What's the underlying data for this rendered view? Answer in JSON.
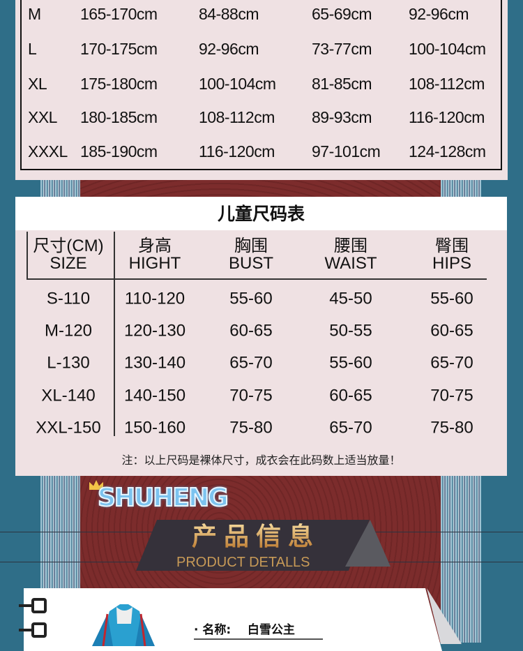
{
  "watermark": {
    "logo_text": "SHUHENG"
  },
  "adult_table": {
    "rows": [
      [
        "M",
        "165-170cm",
        "84-88cm",
        "65-69cm",
        "92-96cm"
      ],
      [
        "L",
        "170-175cm",
        "92-96cm",
        "73-77cm",
        "100-104cm"
      ],
      [
        "XL",
        "175-180cm",
        "100-104cm",
        "81-85cm",
        "108-112cm"
      ],
      [
        "XXL",
        "180-185cm",
        "108-112cm",
        "89-93cm",
        "116-120cm"
      ],
      [
        "XXXL",
        "185-190cm",
        "116-120cm",
        "97-101cm",
        "124-128cm"
      ]
    ]
  },
  "kids_table": {
    "title": "儿童尺码表",
    "headers": [
      {
        "cn": "尺寸(CM)",
        "en": "SIZE"
      },
      {
        "cn": "身高",
        "en": "HIGHT"
      },
      {
        "cn": "胸围",
        "en": "BUST"
      },
      {
        "cn": "腰围",
        "en": "WAIST"
      },
      {
        "cn": "臀围",
        "en": "HIPS"
      }
    ],
    "rows": [
      [
        "S-110",
        "110-120",
        "55-60",
        "45-50",
        "55-60"
      ],
      [
        "M-120",
        "120-130",
        "60-65",
        "50-55",
        "60-65"
      ],
      [
        "L-130",
        "130-140",
        "65-70",
        "55-60",
        "65-70"
      ],
      [
        "XL-140",
        "140-150",
        "70-75",
        "60-65",
        "70-75"
      ],
      [
        "XXL-150",
        "150-160",
        "75-80",
        "65-70",
        "75-80"
      ]
    ],
    "note": "注：以上尺码是裸体尺寸，成衣会在此码数上适当放量！"
  },
  "product_details": {
    "title": "产品信息",
    "subtitle": "PRODUCT DETALLS",
    "name_label": "· 名称:",
    "name_value": "白雪公主"
  },
  "colors": {
    "background": "#2f6e88",
    "panel": "#7c2c2c",
    "card": "#efe1e3",
    "gold": "#c79a57"
  }
}
